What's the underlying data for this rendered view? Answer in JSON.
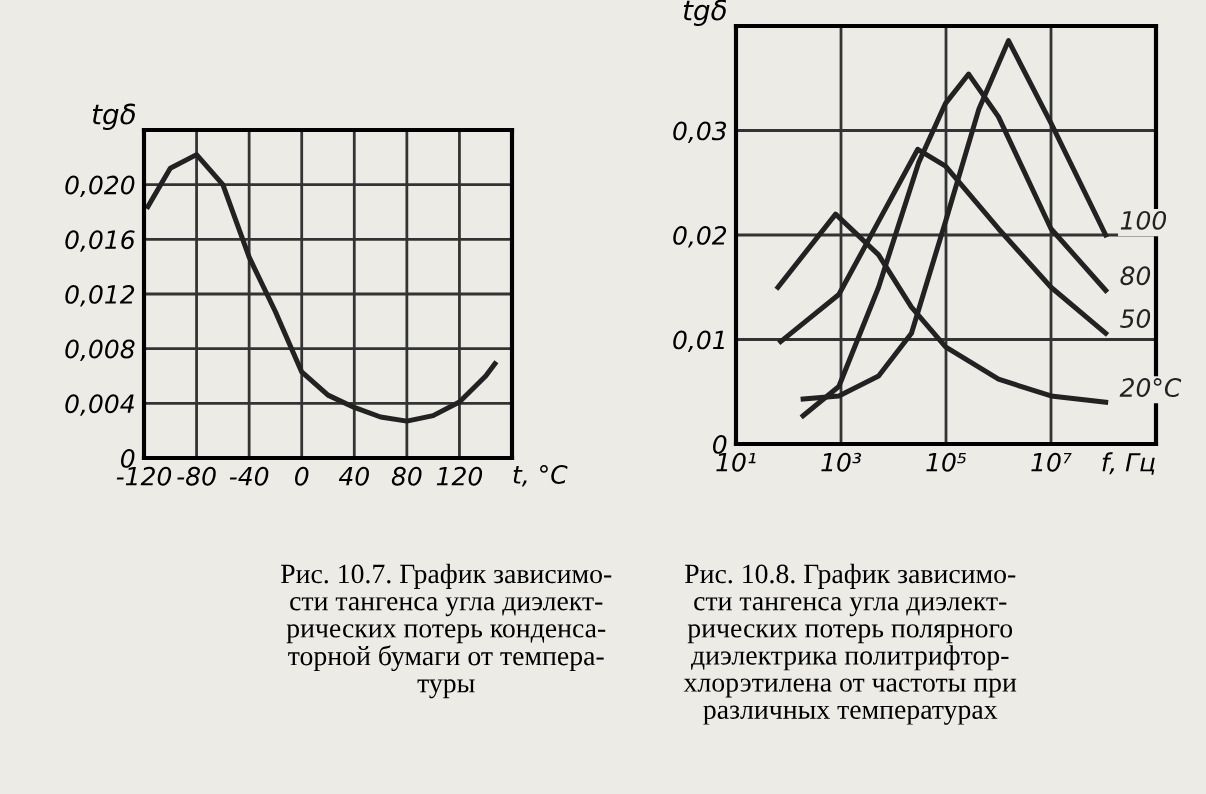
{
  "chart_data": [
    {
      "type": "line",
      "xlabel": "t, °C",
      "ylabel": "tgδ",
      "x": [
        -117,
        -100,
        -80,
        -60,
        -40,
        -20,
        0,
        20,
        40,
        60,
        80,
        100,
        120,
        140,
        147
      ],
      "series": [
        {
          "color": "#222222",
          "values": [
            0.0184,
            0.0212,
            0.0222,
            0.02,
            0.0147,
            0.0107,
            0.0063,
            0.0046,
            0.0037,
            0.003,
            0.0027,
            0.0031,
            0.0041,
            0.006,
            0.0069
          ]
        }
      ],
      "xlim": [
        -120,
        160
      ],
      "xticks": [
        -120,
        -80,
        -40,
        0,
        40,
        80,
        120
      ],
      "ylim": [
        0,
        0.024
      ],
      "yticks": [
        0,
        {
          "value": 0.004,
          "label": "0,004"
        },
        {
          "value": 0.008,
          "label": "0,008"
        },
        {
          "value": 0.012,
          "label": "0,012"
        },
        {
          "value": 0.016,
          "label": "0,016"
        },
        {
          "value": 0.02,
          "label": "0,020"
        }
      ],
      "grid": true,
      "legend": false,
      "annotations": [
        "Рис. 10.7. График зависимо-\nсти тангенса угла диэлект-\nрических потерь конденса-\nторной бумаги от темпера-\nтуры"
      ]
    },
    {
      "type": "line",
      "xlabel": "f, Гц",
      "ylabel": "tgδ",
      "log": "x",
      "series": [
        {
          "name": "20°C",
          "color": "#222222",
          "x": [
            63,
            790,
            5200,
            22000,
            98000,
            1000000,
            10000000,
            110000000
          ],
          "values": [
            0.015,
            0.022,
            0.0181,
            0.0131,
            0.0093,
            0.0062,
            0.0046,
            0.004
          ]
        },
        {
          "name": "50",
          "color": "#222222",
          "x": [
            71,
            910,
            5200,
            29000,
            98000,
            1000000,
            10000000,
            110000000
          ],
          "values": [
            0.0098,
            0.0143,
            0.0213,
            0.0282,
            0.0266,
            0.0206,
            0.015,
            0.0106
          ]
        },
        {
          "name": "80",
          "color": "#222222",
          "x": [
            190,
            910,
            5200,
            30000,
            98000,
            270000,
            1000000,
            10000000,
            110000000
          ],
          "values": [
            0.0027,
            0.0055,
            0.015,
            0.0269,
            0.0326,
            0.0354,
            0.0313,
            0.0206,
            0.0147
          ]
        },
        {
          "name": "100",
          "color": "#222222",
          "x": [
            190,
            910,
            5200,
            22000,
            98000,
            420000,
            1550000,
            10000000,
            110000000
          ],
          "values": [
            0.0043,
            0.0046,
            0.0065,
            0.0106,
            0.0213,
            0.032,
            0.0386,
            0.0307,
            0.02
          ]
        }
      ],
      "xlim": [
        10,
        1000000000
      ],
      "xticks": [
        {
          "value": 10,
          "label": "10¹"
        },
        {
          "value": 1000,
          "label": "10³"
        },
        {
          "value": 100000,
          "label": "10⁵"
        },
        {
          "value": 10000000,
          "label": "10⁷"
        }
      ],
      "ylim": [
        0,
        0.04
      ],
      "yticks": [
        0,
        {
          "value": 0.01,
          "label": "0,01"
        },
        {
          "value": 0.02,
          "label": "0,02"
        },
        {
          "value": 0.03,
          "label": "0,03"
        }
      ],
      "grid": true,
      "legend": false,
      "annotations": [
        "Рис. 10.8. График зависимо-\nсти тангенса угла диэлект-\nрических потерь полярного\nдиэлектрика политрифтор-\nхлорэтилена от частоты при\nразличных температурах"
      ]
    }
  ]
}
